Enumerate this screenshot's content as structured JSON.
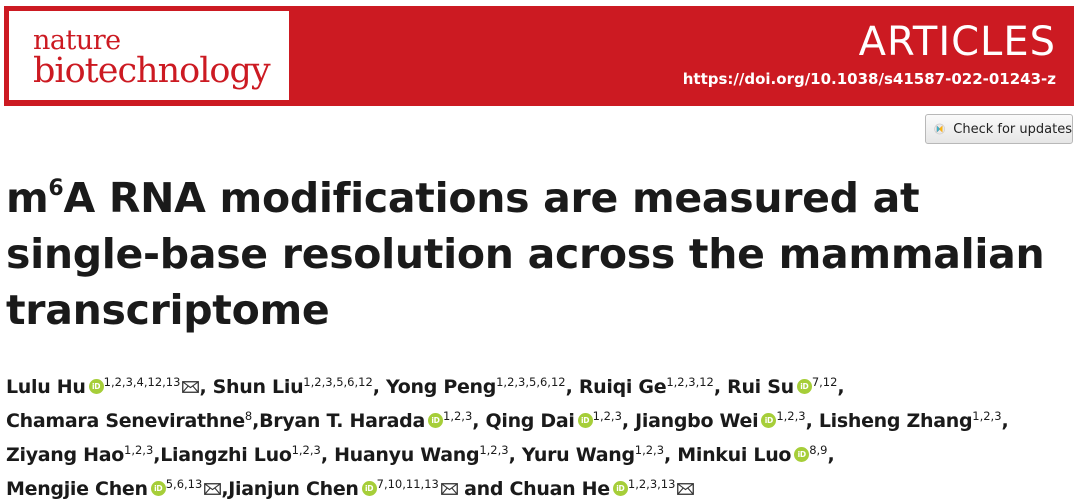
{
  "header": {
    "logo_line1": "nature",
    "logo_line2": "biotechnology",
    "section": "ARTICLES",
    "doi": "https://doi.org/10.1038/s41587-022-01243-z",
    "brand_color": "#cc1a22"
  },
  "check_updates": {
    "label": "Check for updates",
    "icon": "crossmark-icon"
  },
  "title": {
    "m": "m",
    "sup": "6",
    "rest_line1": "A RNA modifications are measured at",
    "line2": "single-base resolution across the mammalian",
    "line3": "transcriptome"
  },
  "authors": [
    {
      "name": "Lulu Hu",
      "orcid": true,
      "aff": "1,2,3,4,12,13",
      "email": true
    },
    {
      "name": "Shun Liu",
      "orcid": false,
      "aff": "1,2,3,5,6,12",
      "email": false
    },
    {
      "name": "Yong Peng",
      "orcid": false,
      "aff": "1,2,3,5,6,12",
      "email": false
    },
    {
      "name": "Ruiqi Ge",
      "orcid": false,
      "aff": "1,2,3,12",
      "email": false
    },
    {
      "name": "Rui Su",
      "orcid": true,
      "aff": "7,12",
      "email": false
    },
    {
      "name": "Chamara Senevirathne",
      "orcid": false,
      "aff": "8",
      "email": false
    },
    {
      "name": "Bryan T. Harada",
      "orcid": true,
      "aff": "1,2,3",
      "email": false
    },
    {
      "name": "Qing Dai",
      "orcid": true,
      "aff": "1,2,3",
      "email": false
    },
    {
      "name": "Jiangbo Wei",
      "orcid": true,
      "aff": "1,2,3",
      "email": false
    },
    {
      "name": "Lisheng Zhang",
      "orcid": false,
      "aff": "1,2,3",
      "email": false
    },
    {
      "name": "Ziyang Hao",
      "orcid": false,
      "aff": "1,2,3",
      "email": false
    },
    {
      "name": "Liangzhi Luo",
      "orcid": false,
      "aff": "1,2,3",
      "email": false
    },
    {
      "name": "Huanyu Wang",
      "orcid": false,
      "aff": "1,2,3",
      "email": false
    },
    {
      "name": "Yuru Wang",
      "orcid": false,
      "aff": "1,2,3",
      "email": false
    },
    {
      "name": "Minkui Luo",
      "orcid": true,
      "aff": "8,9",
      "email": false
    },
    {
      "name": "Mengjie Chen",
      "orcid": true,
      "aff": "5,6,13",
      "email": true
    },
    {
      "name": "Jianjun Chen",
      "orcid": true,
      "aff": "7,10,11,13",
      "email": true
    },
    {
      "name": "Chuan He",
      "orcid": true,
      "aff": "1,2,3,13",
      "email": true
    }
  ],
  "author_separators": [
    ", ",
    ", ",
    ", ",
    ", ",
    ", ",
    ",",
    ", ",
    ", ",
    ", ",
    ", ",
    ",",
    ", ",
    ", ",
    ", ",
    ", ",
    ",",
    " and ",
    ""
  ]
}
